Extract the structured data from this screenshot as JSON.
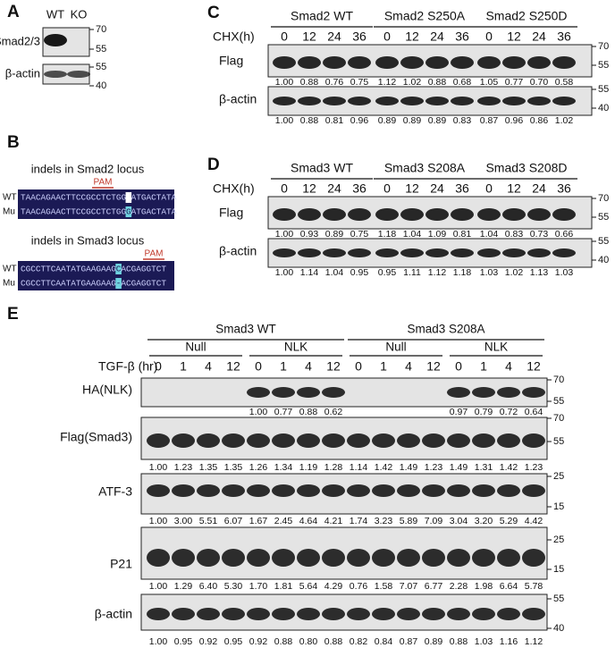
{
  "panel_a": {
    "label": "A",
    "lanes": [
      "WT",
      "KO"
    ],
    "rows": [
      {
        "name": "Smad2/3",
        "markers": [
          "70",
          "55"
        ]
      },
      {
        "name": "β-actin",
        "markers": [
          "55",
          "40"
        ]
      }
    ]
  },
  "panel_b": {
    "label": "B",
    "loci": [
      {
        "title": "indels in Smad2 locus",
        "pam": "PAM",
        "rows": [
          {
            "name": "WT",
            "segments": [
              "TAACAGAACTTCCGCCTCTGG",
              "ATGACTATA"
            ]
          },
          {
            "name": "Mu",
            "segments": [
              "TAACAGAACTTCCGCCTCTGG",
              "G",
              "ATGACTATA"
            ]
          }
        ]
      },
      {
        "title": "indels in Smad3 locus",
        "pam": "PAM",
        "rows": [
          {
            "name": "WT",
            "segments": [
              "CGCCTTCAATATGAAGAAG",
              "C",
              "ACGAGGTCT"
            ]
          },
          {
            "name": "Mu",
            "segments": [
              "CGCCTTCAATATGAAGAAG",
              "-",
              "ACGAGGTCT"
            ]
          }
        ]
      }
    ]
  },
  "panel_c": {
    "label": "C",
    "groups": [
      "Smad2 WT",
      "Smad2 S250A",
      "Smad2 S250D"
    ],
    "time_label": "CHX(h)",
    "times": [
      "0",
      "12",
      "24",
      "36",
      "0",
      "12",
      "24",
      "36",
      "0",
      "12",
      "24",
      "36"
    ],
    "rows": [
      {
        "name": "Flag",
        "markers": [
          "70",
          "55"
        ],
        "quant": [
          "1.00",
          "0.88",
          "0.76",
          "0.75",
          "1.12",
          "1.02",
          "0.88",
          "0.68",
          "1.05",
          "0.77",
          "0.70",
          "0.58"
        ]
      },
      {
        "name": "β-actin",
        "markers": [
          "55",
          "40"
        ],
        "quant": [
          "1.00",
          "0.88",
          "0.81",
          "0.96",
          "0.89",
          "0.89",
          "0.89",
          "0.83",
          "0.87",
          "0.96",
          "0.86",
          "1.02"
        ]
      }
    ]
  },
  "panel_d": {
    "label": "D",
    "groups": [
      "Smad3 WT",
      "Smad3 S208A",
      "Smad3 S208D"
    ],
    "time_label": "CHX(h)",
    "times": [
      "0",
      "12",
      "24",
      "36",
      "0",
      "12",
      "24",
      "36",
      "0",
      "12",
      "24",
      "36"
    ],
    "rows": [
      {
        "name": "Flag",
        "markers": [
          "70",
          "55"
        ],
        "quant": [
          "1.00",
          "0.93",
          "0.89",
          "0.75",
          "1.18",
          "1.04",
          "1.09",
          "0.81",
          "1.04",
          "0.83",
          "0.73",
          "0.66"
        ]
      },
      {
        "name": "β-actin",
        "markers": [
          "55",
          "40"
        ],
        "quant": [
          "1.00",
          "1.14",
          "1.04",
          "0.95",
          "0.95",
          "1.11",
          "1.12",
          "1.18",
          "1.03",
          "1.02",
          "1.13",
          "1.03"
        ]
      }
    ]
  },
  "panel_e": {
    "label": "E",
    "groups": [
      "Smad3 WT",
      "Smad3 S208A"
    ],
    "subgroups": [
      "Null",
      "NLK",
      "Null",
      "NLK"
    ],
    "time_label": "TGF-β (hr)",
    "times": [
      "0",
      "1",
      "4",
      "12",
      "0",
      "1",
      "4",
      "12",
      "0",
      "1",
      "4",
      "12",
      "0",
      "1",
      "4",
      "12"
    ],
    "rows": [
      {
        "name": "HA(NLK)",
        "markers": [
          "70",
          "55"
        ],
        "quant": [
          null,
          null,
          null,
          null,
          "1.00",
          "0.77",
          "0.88",
          "0.62",
          null,
          null,
          null,
          null,
          "0.97",
          "0.79",
          "0.72",
          "0.64"
        ]
      },
      {
        "name": "Flag(Smad3)",
        "markers": [
          "70",
          "55"
        ],
        "quant": [
          "1.00",
          "1.23",
          "1.35",
          "1.35",
          "1.26",
          "1.34",
          "1.19",
          "1.28",
          "1.14",
          "1.42",
          "1.49",
          "1.23",
          "1.49",
          "1.31",
          "1.42",
          "1.23"
        ]
      },
      {
        "name": "ATF-3",
        "markers": [
          "25",
          "15"
        ],
        "quant": [
          "1.00",
          "3.00",
          "5.51",
          "6.07",
          "1.67",
          "2.45",
          "4.64",
          "4.21",
          "1.74",
          "3.23",
          "5.89",
          "7.09",
          "3.04",
          "3.20",
          "5.29",
          "4.42"
        ]
      },
      {
        "name": "P21",
        "markers": [
          "25",
          "15"
        ],
        "quant": [
          "1.00",
          "1.29",
          "6.40",
          "5.30",
          "1.70",
          "1.81",
          "5.64",
          "4.29",
          "0.76",
          "1.58",
          "7.07",
          "6.77",
          "2.28",
          "1.98",
          "6.64",
          "5.78"
        ]
      },
      {
        "name": "β-actin",
        "markers": [
          "55",
          "40"
        ],
        "quant": [
          "1.00",
          "0.95",
          "0.92",
          "0.95",
          "0.92",
          "0.88",
          "0.80",
          "0.88",
          "0.82",
          "0.84",
          "0.87",
          "0.89",
          "0.88",
          "1.03",
          "1.16",
          "1.12"
        ]
      }
    ]
  }
}
